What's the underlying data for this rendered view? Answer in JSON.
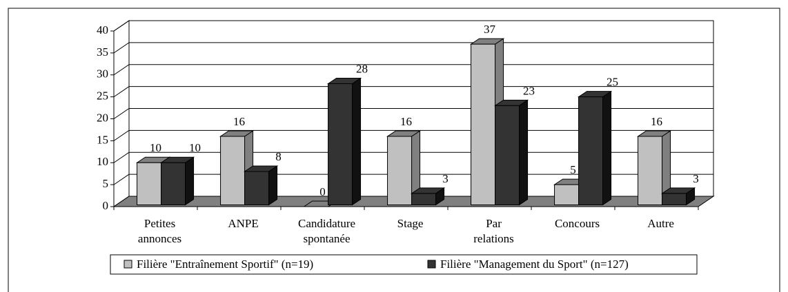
{
  "chart_data": {
    "type": "bar3d",
    "categories": [
      "Petites\nannonces",
      "ANPE",
      "Candidature\nspontanée",
      "Stage",
      "Par\nrelations",
      "Concours",
      "Autre"
    ],
    "series": [
      {
        "name": "Filière \"Entraînement Sportif\" (n=19)",
        "color": "#c0c0c0",
        "side": "#808080",
        "values": [
          10,
          16,
          0,
          16,
          37,
          5,
          16
        ]
      },
      {
        "name": "Filière \"Management du Sport\" (n=127)",
        "color": "#333333",
        "side": "#111111",
        "values": [
          10,
          8,
          28,
          3,
          23,
          25,
          3
        ]
      }
    ],
    "ylim": [
      0,
      40
    ],
    "yticks": [
      0,
      5,
      10,
      15,
      20,
      25,
      30,
      35,
      40
    ],
    "grid": true,
    "floor_color": "#808080"
  }
}
